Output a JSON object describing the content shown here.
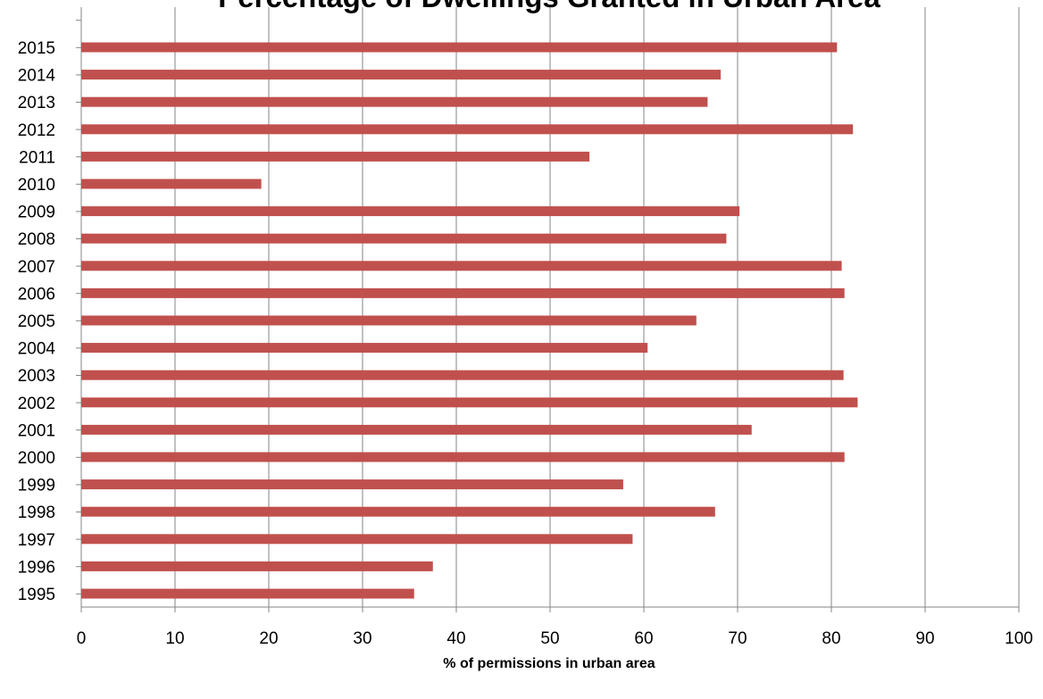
{
  "chart_data": {
    "type": "bar",
    "orientation": "horizontal",
    "title": "Percentage of Dwellings Granted in Urban Area",
    "xlabel": "% of permissions in urban area",
    "ylabel": "",
    "xlim": [
      0,
      100
    ],
    "x_ticks": [
      0,
      10,
      20,
      30,
      40,
      50,
      60,
      70,
      80,
      90,
      100
    ],
    "grid": "vertical",
    "legend": "none",
    "categories": [
      "2015",
      "2014",
      "2013",
      "2012",
      "2011",
      "2010",
      "2009",
      "2008",
      "2007",
      "2006",
      "2005",
      "2004",
      "2003",
      "2002",
      "2001",
      "2000",
      "1999",
      "1998",
      "1997",
      "1996",
      "1995"
    ],
    "values": [
      80.6,
      68.2,
      66.8,
      82.3,
      54.2,
      19.2,
      70.2,
      68.8,
      81.1,
      81.4,
      65.6,
      60.4,
      81.3,
      82.8,
      71.5,
      81.4,
      57.8,
      67.6,
      58.8,
      37.5,
      35.5
    ],
    "bar_color": "#c0504d",
    "grid_color": "#868686"
  }
}
